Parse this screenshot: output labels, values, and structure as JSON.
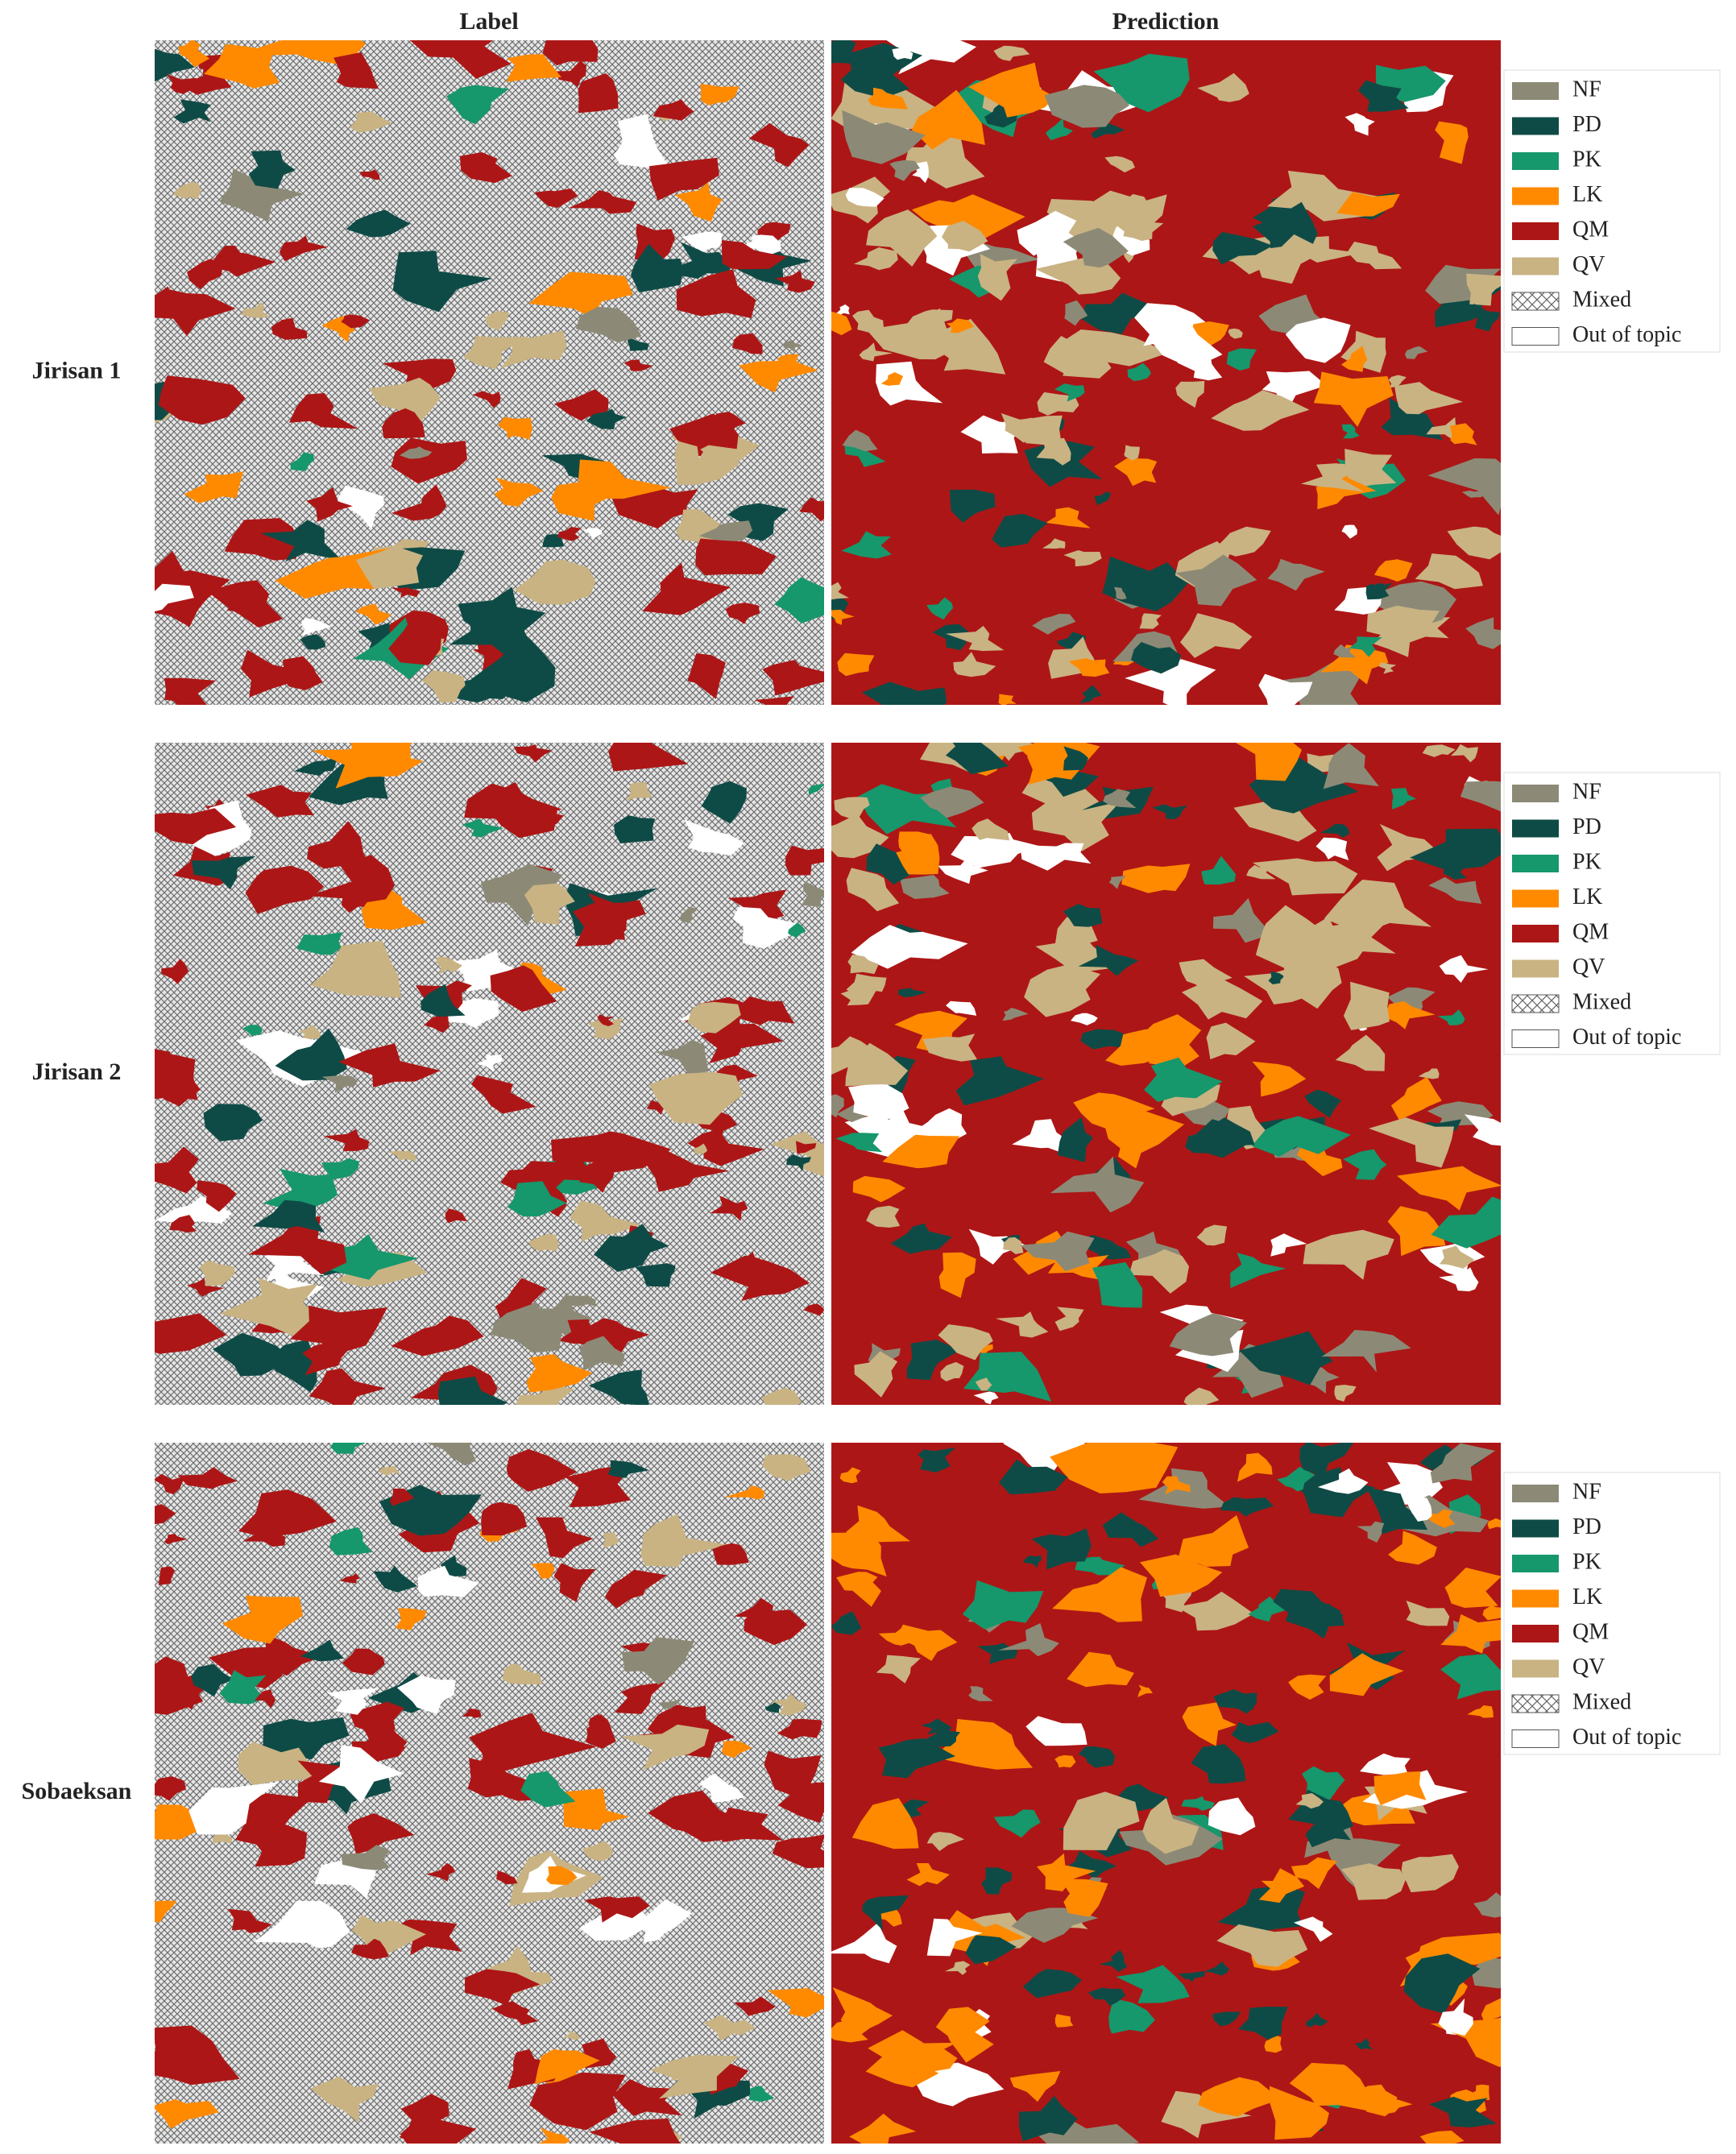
{
  "columns": [
    "Label",
    "Prediction"
  ],
  "rows": [
    {
      "name": "Jirisan 1"
    },
    {
      "name": "Jirisan 2"
    },
    {
      "name": "Sobaeksan"
    }
  ],
  "legend": [
    {
      "label": "NF",
      "color": "#8c8a76"
    },
    {
      "label": "PD",
      "color": "#0f4b46"
    },
    {
      "label": "PK",
      "color": "#16976c"
    },
    {
      "label": "LK",
      "color": "#ff8a00"
    },
    {
      "label": "QM",
      "color": "#ad1616"
    },
    {
      "label": "QV",
      "color": "#c9b383"
    },
    {
      "label": "Mixed",
      "pattern": "hatch"
    },
    {
      "label": "Out of topic",
      "color": "#ffffff"
    }
  ]
}
